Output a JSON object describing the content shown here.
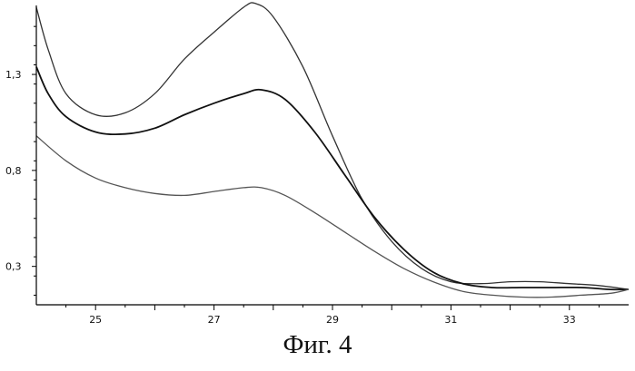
{
  "chart_data": {
    "type": "line",
    "title": "",
    "xlabel": "",
    "ylabel": "",
    "xlim": [
      24,
      34
    ],
    "ylim": [
      0.1,
      1.65
    ],
    "x_ticks": [
      25,
      27,
      29,
      31,
      33
    ],
    "y_ticks": [
      0.3,
      0.8,
      1.3
    ],
    "x_tick_labels": [
      "25",
      "27",
      "29",
      "31",
      "33"
    ],
    "y_tick_labels": [
      "0,3",
      "0,8",
      "1,3"
    ],
    "grid": false,
    "legend": "none",
    "series": [
      {
        "color": "#333333",
        "x": [
          24.0,
          24.2,
          24.5,
          25.0,
          25.5,
          26.0,
          26.5,
          27.0,
          27.5,
          27.7,
          28.0,
          28.5,
          29.0,
          29.5,
          30.0,
          30.5,
          31.0,
          31.5,
          32.0,
          32.5,
          33.0,
          33.5,
          34.0
        ],
        "y": [
          1.65,
          1.43,
          1.2,
          1.09,
          1.1,
          1.2,
          1.38,
          1.52,
          1.65,
          1.67,
          1.6,
          1.34,
          0.98,
          0.65,
          0.43,
          0.29,
          0.22,
          0.21,
          0.22,
          0.22,
          0.21,
          0.2,
          0.18
        ]
      },
      {
        "color": "#111111",
        "x": [
          24.0,
          24.2,
          24.5,
          25.0,
          25.5,
          26.0,
          26.5,
          27.0,
          27.5,
          27.8,
          28.2,
          28.7,
          29.2,
          29.7,
          30.2,
          30.7,
          31.2,
          31.7,
          32.2,
          32.7,
          33.2,
          33.7,
          34.0
        ],
        "y": [
          1.34,
          1.2,
          1.08,
          1.0,
          0.99,
          1.02,
          1.09,
          1.15,
          1.2,
          1.22,
          1.17,
          1.0,
          0.78,
          0.56,
          0.39,
          0.27,
          0.21,
          0.19,
          0.19,
          0.19,
          0.19,
          0.18,
          0.18
        ]
      },
      {
        "color": "#555555",
        "x": [
          24.0,
          24.5,
          25.0,
          25.5,
          26.0,
          26.5,
          27.0,
          27.5,
          27.8,
          28.2,
          28.7,
          29.2,
          29.7,
          30.2,
          30.7,
          31.2,
          31.7,
          32.2,
          32.7,
          33.2,
          33.7,
          34.0
        ],
        "y": [
          0.98,
          0.85,
          0.76,
          0.71,
          0.68,
          0.67,
          0.69,
          0.71,
          0.71,
          0.67,
          0.58,
          0.48,
          0.38,
          0.29,
          0.22,
          0.17,
          0.15,
          0.14,
          0.14,
          0.15,
          0.16,
          0.18
        ]
      }
    ]
  },
  "caption": "Фиг. 4"
}
